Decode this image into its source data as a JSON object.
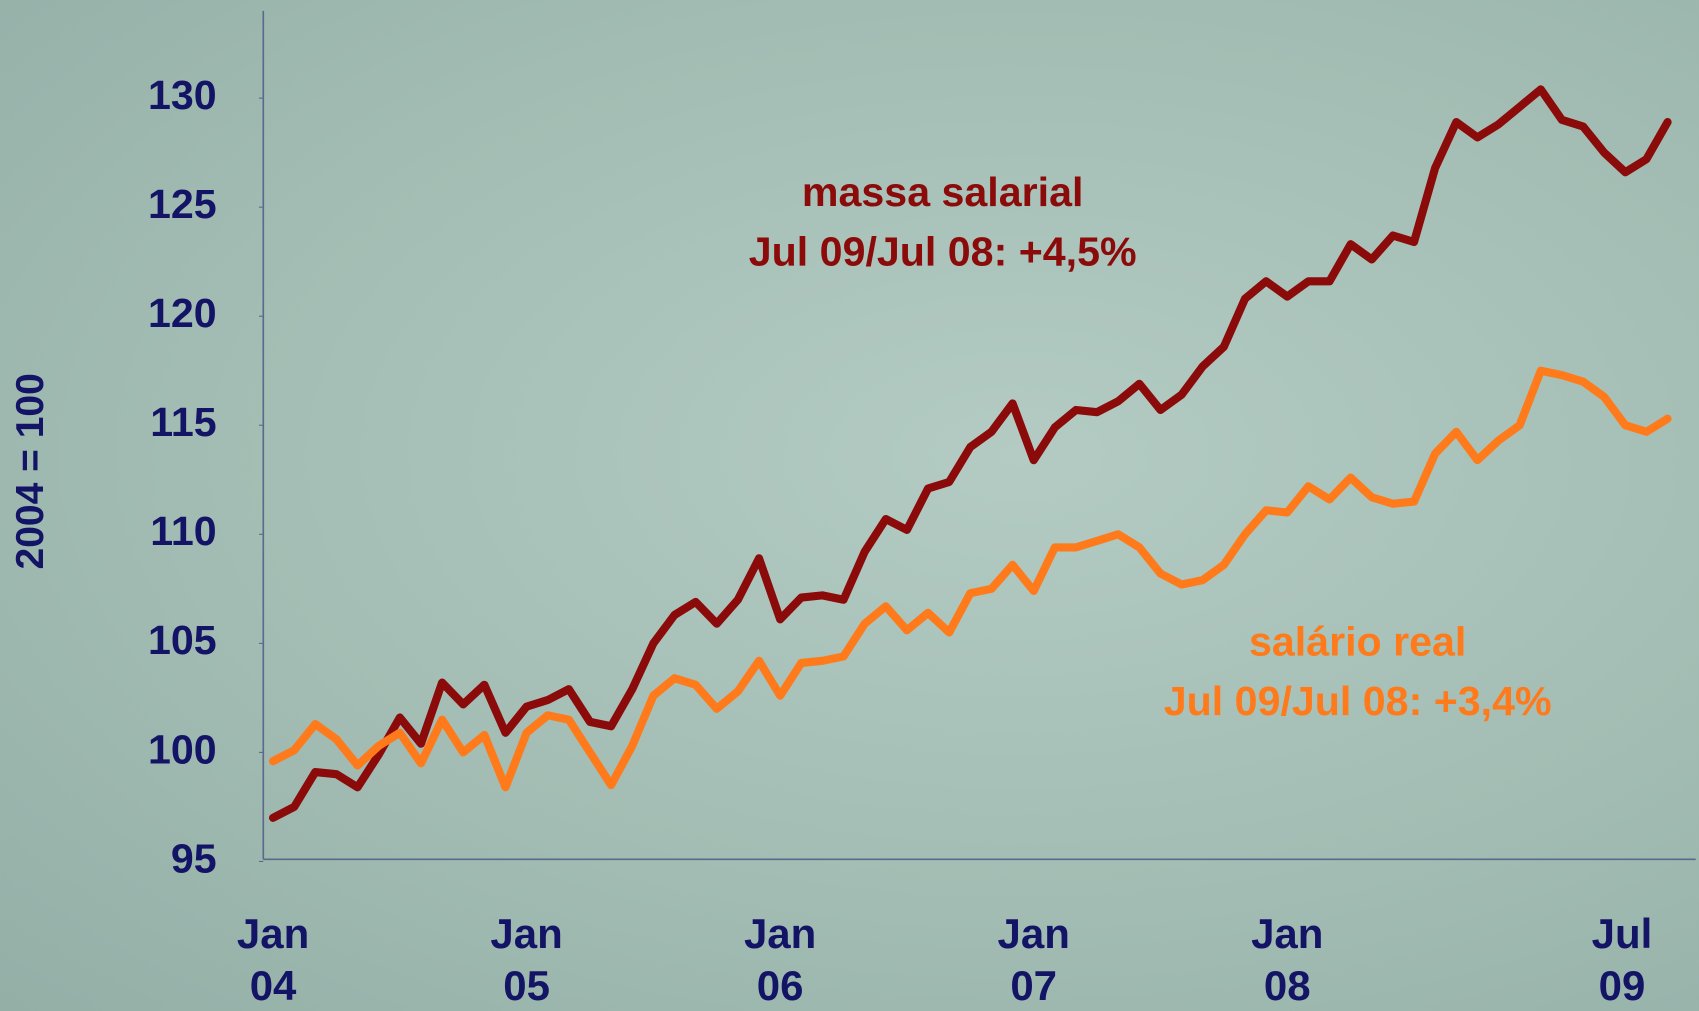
{
  "chart_data": {
    "type": "line",
    "y_label": "2004 = 100",
    "categories": [
      "Jan 04",
      null,
      null,
      null,
      null,
      null,
      null,
      null,
      null,
      null,
      null,
      null,
      "Jan 05",
      null,
      null,
      null,
      null,
      null,
      null,
      null,
      null,
      null,
      null,
      null,
      "Jan 06",
      null,
      null,
      null,
      null,
      null,
      null,
      null,
      null,
      null,
      null,
      null,
      "Jan 07",
      null,
      null,
      null,
      null,
      null,
      null,
      null,
      null,
      null,
      null,
      null,
      "Jan 08",
      null,
      null,
      null,
      null,
      null,
      null,
      null,
      null,
      null,
      null,
      null,
      null,
      null,
      null,
      null,
      null,
      null,
      "Jul 09"
    ],
    "series": [
      {
        "name": "massa salarial",
        "color": "#8b0a0a",
        "annotation": "Jul 09/Jul 08: +4,5%",
        "values": [
          97.0,
          97.5,
          99.1,
          99.0,
          98.4,
          99.9,
          101.6,
          100.4,
          103.2,
          102.2,
          103.1,
          100.9,
          102.1,
          102.4,
          102.9,
          101.4,
          101.2,
          102.9,
          105.0,
          106.3,
          106.9,
          105.9,
          107.0,
          108.9,
          106.1,
          107.1,
          107.2,
          107.0,
          109.2,
          110.7,
          110.2,
          112.1,
          112.4,
          114.0,
          114.7,
          116.0,
          113.4,
          114.9,
          115.7,
          115.6,
          116.1,
          116.9,
          115.7,
          116.4,
          117.7,
          118.6,
          120.8,
          121.6,
          120.9,
          121.6,
          121.6,
          123.3,
          122.6,
          123.7,
          123.4,
          126.8,
          128.9,
          128.2,
          128.8,
          129.6,
          130.4,
          129.0,
          128.7,
          127.5,
          126.6,
          127.2,
          128.9
        ]
      },
      {
        "name": "salário real",
        "color": "#ff7a1a",
        "annotation": "Jul 09/Jul 08: +3,4%",
        "values": [
          99.6,
          100.1,
          101.3,
          100.6,
          99.4,
          100.3,
          100.9,
          99.5,
          101.5,
          100.0,
          100.8,
          98.4,
          100.9,
          101.7,
          101.5,
          100.0,
          98.5,
          100.3,
          102.6,
          103.4,
          103.1,
          102.0,
          102.8,
          104.2,
          102.6,
          104.1,
          104.2,
          104.4,
          105.9,
          106.7,
          105.6,
          106.4,
          105.5,
          107.3,
          107.5,
          108.6,
          107.4,
          109.4,
          109.4,
          109.7,
          110.0,
          109.4,
          108.2,
          107.7,
          107.9,
          108.6,
          110.0,
          111.1,
          111.0,
          112.2,
          111.6,
          112.6,
          111.7,
          111.4,
          111.5,
          113.7,
          114.7,
          113.4,
          114.3,
          115.0,
          117.5,
          117.3,
          117.0,
          116.3,
          115.0,
          114.7,
          115.3
        ]
      }
    ],
    "ylim": [
      95,
      134
    ],
    "yticks": [
      95,
      100,
      105,
      110,
      115,
      120,
      125,
      130
    ],
    "grid": false
  }
}
